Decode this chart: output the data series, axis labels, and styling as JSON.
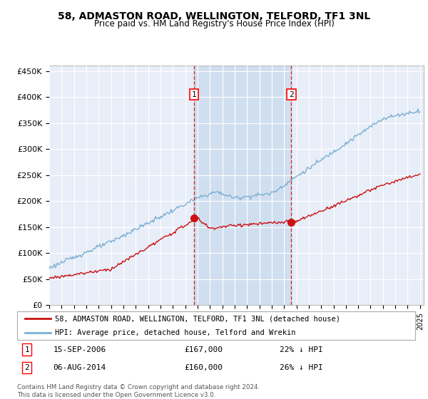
{
  "title": "58, ADMASTON ROAD, WELLINGTON, TELFORD, TF1 3NL",
  "subtitle": "Price paid vs. HM Land Registry's House Price Index (HPI)",
  "ylim": [
    0,
    460000
  ],
  "yticks": [
    0,
    50000,
    100000,
    150000,
    200000,
    250000,
    300000,
    350000,
    400000,
    450000
  ],
  "ytick_labels": [
    "£0",
    "£50K",
    "£100K",
    "£150K",
    "£200K",
    "£250K",
    "£300K",
    "£350K",
    "£400K",
    "£450K"
  ],
  "hpi_color": "#7bafd4",
  "price_color": "#cc1111",
  "sale1_date": 2006.71,
  "sale1_price": 167000,
  "sale1_label": "1",
  "sale1_text": "15-SEP-2006",
  "sale1_amount": "£167,000",
  "sale1_pct": "22% ↓ HPI",
  "sale2_date": 2014.59,
  "sale2_price": 160000,
  "sale2_label": "2",
  "sale2_text": "06-AUG-2014",
  "sale2_amount": "£160,000",
  "sale2_pct": "26% ↓ HPI",
  "legend_line1": "58, ADMASTON ROAD, WELLINGTON, TELFORD, TF1 3NL (detached house)",
  "legend_line2": "HPI: Average price, detached house, Telford and Wrekin",
  "footer": "Contains HM Land Registry data © Crown copyright and database right 2024.\nThis data is licensed under the Open Government Licence v3.0.",
  "plot_bg_color": "#e8eef8",
  "shade_color": "#d0dff0",
  "grid_color": "#ffffff"
}
